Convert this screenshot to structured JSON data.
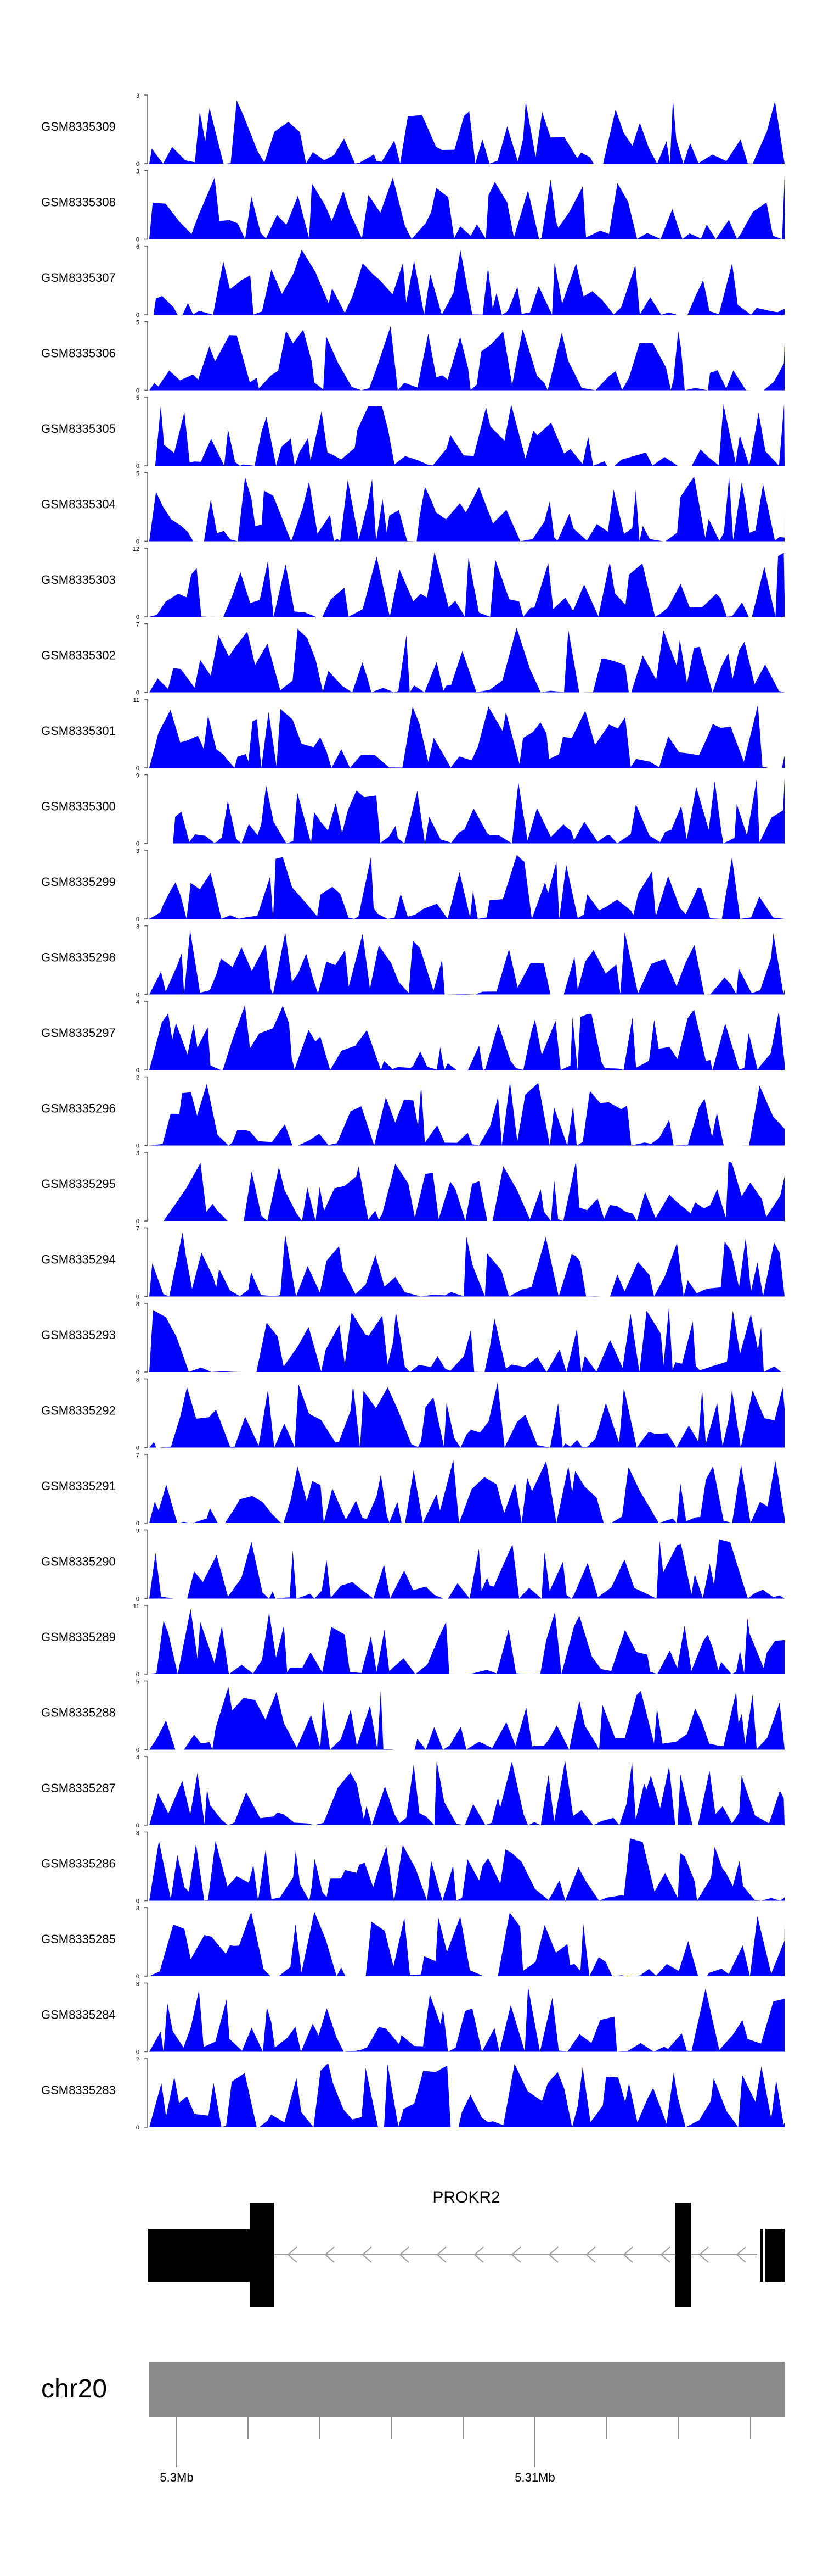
{
  "chart_data": {
    "type": "area",
    "series_color": "#0000ff",
    "tracks": [
      {
        "name": "GSM8335309",
        "ymax": "3",
        "ymin": "0"
      },
      {
        "name": "GSM8335308",
        "ymax": "3",
        "ymin": "0"
      },
      {
        "name": "GSM8335307",
        "ymax": "6",
        "ymin": "0"
      },
      {
        "name": "GSM8335306",
        "ymax": "5",
        "ymin": "0"
      },
      {
        "name": "GSM8335305",
        "ymax": "5",
        "ymin": "0"
      },
      {
        "name": "GSM8335304",
        "ymax": "5",
        "ymin": "0"
      },
      {
        "name": "GSM8335303",
        "ymax": "12",
        "ymin": "0"
      },
      {
        "name": "GSM8335302",
        "ymax": "7",
        "ymin": "0"
      },
      {
        "name": "GSM8335301",
        "ymax": "11",
        "ymin": "0"
      },
      {
        "name": "GSM8335300",
        "ymax": "9",
        "ymin": "0"
      },
      {
        "name": "GSM8335299",
        "ymax": "3",
        "ymin": "0"
      },
      {
        "name": "GSM8335298",
        "ymax": "3",
        "ymin": "0"
      },
      {
        "name": "GSM8335297",
        "ymax": "4",
        "ymin": "0"
      },
      {
        "name": "GSM8335296",
        "ymax": "2",
        "ymin": "0"
      },
      {
        "name": "GSM8335295",
        "ymax": "3",
        "ymin": "0"
      },
      {
        "name": "GSM8335294",
        "ymax": "7",
        "ymin": "0"
      },
      {
        "name": "GSM8335293",
        "ymax": "8",
        "ymin": "0"
      },
      {
        "name": "GSM8335292",
        "ymax": "8",
        "ymin": "0"
      },
      {
        "name": "GSM8335291",
        "ymax": "7",
        "ymin": "0"
      },
      {
        "name": "GSM8335290",
        "ymax": "9",
        "ymin": "0"
      },
      {
        "name": "GSM8335289",
        "ymax": "11",
        "ymin": "0"
      },
      {
        "name": "GSM8335288",
        "ymax": "5",
        "ymin": "0"
      },
      {
        "name": "GSM8335287",
        "ymax": "4",
        "ymin": "0"
      },
      {
        "name": "GSM8335286",
        "ymax": "3",
        "ymin": "0"
      },
      {
        "name": "GSM8335285",
        "ymax": "3",
        "ymin": "0"
      },
      {
        "name": "GSM8335284",
        "ymax": "3",
        "ymin": "0"
      },
      {
        "name": "GSM8335283",
        "ymax": "2",
        "ymin": "0"
      }
    ],
    "gene": {
      "name": "PROKR2",
      "strand": "-"
    },
    "chromosome": {
      "name": "chr20",
      "tick_labels": [
        "5.3Mb",
        "5.31Mb"
      ]
    }
  }
}
